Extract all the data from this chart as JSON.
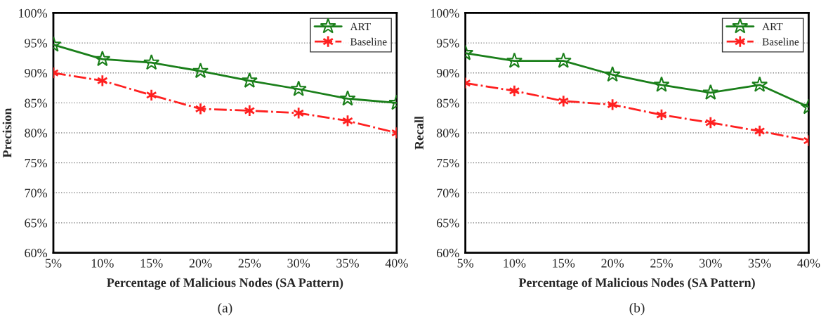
{
  "chart_data": [
    {
      "type": "line",
      "xlabel": "Percentage of Malicious Nodes (SA Pattern)",
      "ylabel": "Precision",
      "annotations": [
        "(a)"
      ],
      "categories": [
        "5%",
        "10%",
        "15%",
        "20%",
        "25%",
        "30%",
        "35%",
        "40%"
      ],
      "ylim": [
        60,
        100
      ],
      "yticks": [
        {
          "value": 60,
          "label": "60%"
        },
        {
          "value": 65,
          "label": "65%"
        },
        {
          "value": 70,
          "label": "70%"
        },
        {
          "value": 75,
          "label": "75%"
        },
        {
          "value": 80,
          "label": "80%"
        },
        {
          "value": 85,
          "label": "85%"
        },
        {
          "value": 90,
          "label": "90%"
        },
        {
          "value": 95,
          "label": "95%"
        },
        {
          "value": 100,
          "label": "100%"
        }
      ],
      "grid": "y",
      "legend": "top right",
      "series": [
        {
          "name": "ART",
          "color": "#1a7f1a",
          "marker": "star",
          "line_style": "solid",
          "values": [
            94.7,
            92.3,
            91.7,
            90.3,
            88.7,
            87.3,
            85.7,
            85.0
          ]
        },
        {
          "name": "Baseline",
          "color": "#ff2020",
          "marker": "cross",
          "line_style": "dashdot",
          "values": [
            90.0,
            88.7,
            86.3,
            84.0,
            83.7,
            83.3,
            82.0,
            80.0
          ]
        }
      ]
    },
    {
      "type": "line",
      "xlabel": "Percentage of Malicious Nodes (SA Pattern)",
      "ylabel": "Recall",
      "annotations": [
        "(b)"
      ],
      "categories": [
        "5%",
        "10%",
        "15%",
        "20%",
        "25%",
        "30%",
        "35%",
        "40%"
      ],
      "ylim": [
        60,
        100
      ],
      "yticks": [
        {
          "value": 60,
          "label": "60%"
        },
        {
          "value": 65,
          "label": "65%"
        },
        {
          "value": 70,
          "label": "70%"
        },
        {
          "value": 75,
          "label": "75%"
        },
        {
          "value": 80,
          "label": "80%"
        },
        {
          "value": 85,
          "label": "85%"
        },
        {
          "value": 90,
          "label": "90%"
        },
        {
          "value": 95,
          "label": "95%"
        },
        {
          "value": 100,
          "label": "100%"
        }
      ],
      "grid": "y",
      "legend": "top right",
      "series": [
        {
          "name": "ART",
          "color": "#1a7f1a",
          "marker": "star",
          "line_style": "solid",
          "values": [
            93.3,
            92.0,
            92.0,
            89.7,
            88.0,
            86.7,
            88.0,
            84.3
          ]
        },
        {
          "name": "Baseline",
          "color": "#ff2020",
          "marker": "cross",
          "line_style": "dashdot",
          "values": [
            88.3,
            87.0,
            85.3,
            84.7,
            83.0,
            81.7,
            80.3,
            78.7
          ]
        }
      ]
    }
  ]
}
